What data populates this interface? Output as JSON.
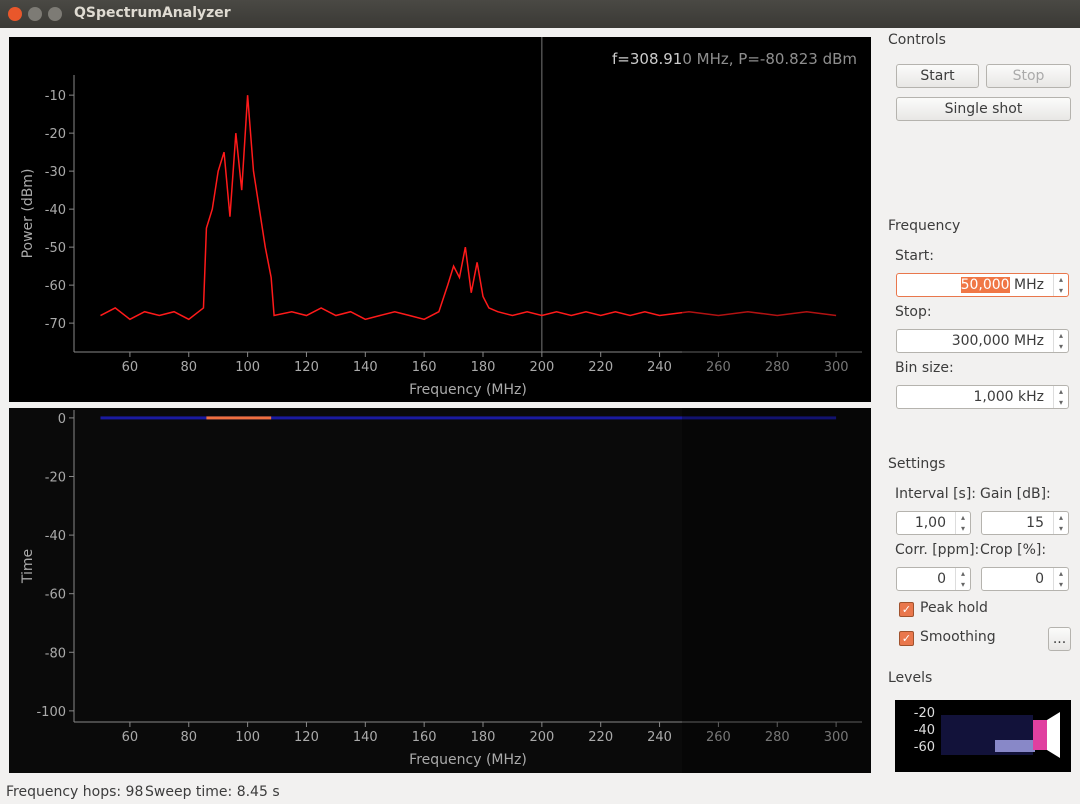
{
  "window": {
    "title": "QSpectrumAnalyzer"
  },
  "chart_data": [
    {
      "type": "line",
      "annotation": "f=308.910 MHz, P=-80.823 dBm",
      "x_label": "Frequency (MHz)",
      "y_label": "Power (dBm)",
      "xlim": [
        41,
        308.8
      ],
      "xticks": [
        60,
        80,
        100,
        120,
        140,
        160,
        180,
        200,
        220,
        240,
        260,
        280,
        300
      ],
      "ylim": [
        -77.6,
        -4.7
      ],
      "yticks": [
        -10,
        -20,
        -30,
        -40,
        -50,
        -60,
        -70
      ],
      "cursor_x": 200,
      "series": [
        {
          "color": "#ff1a1a",
          "x": [
            50,
            55,
            60,
            65,
            70,
            75,
            80,
            85,
            86,
            88,
            90,
            92,
            94,
            96,
            98,
            100,
            102,
            104,
            106,
            108,
            109,
            115,
            120,
            125,
            130,
            135,
            140,
            145,
            150,
            155,
            160,
            165,
            168,
            170,
            172,
            174,
            176,
            178,
            180,
            182,
            185,
            190,
            195,
            200,
            205,
            210,
            215,
            220,
            225,
            230,
            235,
            240,
            250,
            260,
            270,
            280,
            290,
            300
          ],
          "values": [
            -68,
            -66,
            -69,
            -67,
            -68,
            -67,
            -69,
            -66,
            -45,
            -40,
            -30,
            -25,
            -42,
            -20,
            -35,
            -10,
            -30,
            -40,
            -50,
            -58,
            -68,
            -67,
            -68,
            -66,
            -68,
            -67,
            -69,
            -68,
            -67,
            -68,
            -69,
            -67,
            -60,
            -55,
            -58,
            -50,
            -62,
            -54,
            -63,
            -66,
            -67,
            -68,
            -67,
            -68,
            -67,
            -68,
            -67,
            -68,
            -67,
            -68,
            -67,
            -68,
            -67,
            -68,
            -67,
            -68,
            -67,
            -68
          ]
        }
      ]
    },
    {
      "type": "waterfall",
      "x_label": "Frequency (MHz)",
      "y_label": "Time",
      "xlim": [
        41,
        308.8
      ],
      "xticks": [
        60,
        80,
        100,
        120,
        140,
        160,
        180,
        200,
        220,
        240,
        260,
        280,
        300
      ],
      "ylim": [
        -103.8,
        2.7
      ],
      "yticks": [
        0,
        -20,
        -40,
        -60,
        -80,
        -100
      ],
      "rows": [
        {
          "t": 0,
          "x": [
            50,
            300
          ],
          "hot": [
            86,
            108
          ]
        }
      ]
    }
  ],
  "controls": {
    "title": "Controls",
    "start": "Start",
    "stop": "Stop",
    "single_shot": "Single shot"
  },
  "frequency": {
    "title": "Frequency",
    "start_label": "Start:",
    "start_value": "50,000",
    "start_unit": "MHz",
    "stop_label": "Stop:",
    "stop_value": "300,000 MHz",
    "bin_label": "Bin size:",
    "bin_value": "1,000 kHz"
  },
  "settings": {
    "title": "Settings",
    "interval_label": "Interval [s]:",
    "interval": "1,00",
    "gain_label": "Gain [dB]:",
    "gain": "15",
    "corr_label": "Corr. [ppm]:",
    "corr": "0",
    "crop_label": "Crop [%]:",
    "crop": "0",
    "peak_hold": "Peak hold",
    "smoothing": "Smoothing",
    "more": "..."
  },
  "levels": {
    "title": "Levels",
    "ticks": [
      -20,
      -40,
      -60
    ]
  },
  "status": {
    "hops": "Frequency hops: 98",
    "sweep": "Sweep time: 8.45 s"
  }
}
